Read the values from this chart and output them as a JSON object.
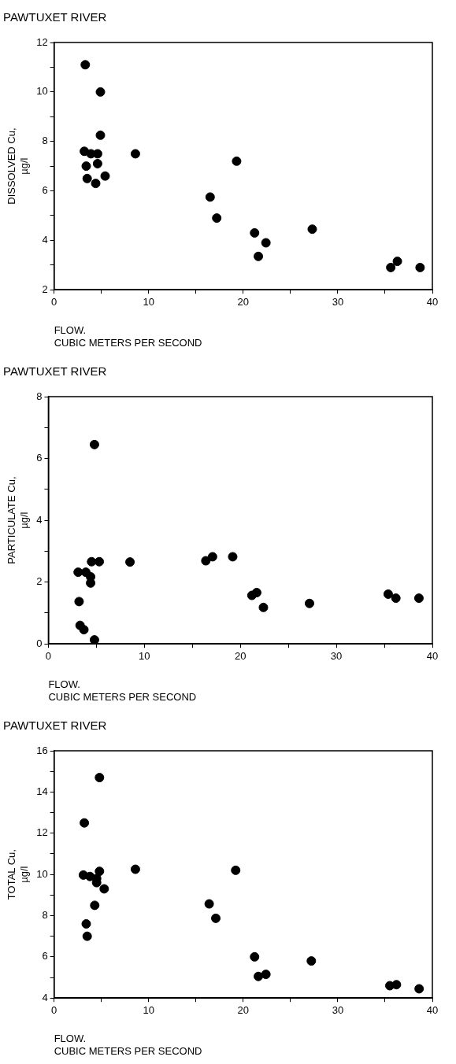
{
  "chart_data": [
    {
      "type": "scatter",
      "title": "PAWTUXET RIVER",
      "xlabel": "FLOW.\nCUBIC METERS PER SECOND",
      "ylabel": "DISSOLVED Cu,\nµg/l",
      "marker": "circle",
      "grid": false,
      "legend": false,
      "xlim": [
        0,
        40
      ],
      "xticks": [
        0,
        {
          "value": 5,
          "label": null
        },
        10,
        {
          "value": 15,
          "label": null
        },
        20,
        {
          "value": 25,
          "label": null
        },
        30,
        {
          "value": 35,
          "label": null
        },
        40
      ],
      "ylim": [
        2,
        12
      ],
      "yticks": [
        2,
        {
          "value": 3,
          "label": null
        },
        4,
        {
          "value": 5,
          "label": null
        },
        6,
        {
          "value": 7,
          "label": null
        },
        8,
        {
          "value": 9,
          "label": null
        },
        10,
        {
          "value": 11,
          "label": null
        },
        12
      ],
      "series": [
        {
          "color": "#000000",
          "x": [
            3.3,
            4.9,
            4.9,
            3.2,
            3.9,
            4.6,
            8.6,
            3.4,
            4.6,
            3.5,
            4.4,
            5.4,
            19.3,
            16.5,
            17.2,
            21.2,
            21.6,
            22.4,
            27.3,
            35.6,
            36.3,
            38.7
          ],
          "values": [
            11.1,
            10.0,
            8.25,
            7.6,
            7.5,
            7.5,
            7.5,
            7.0,
            7.1,
            6.5,
            6.3,
            6.6,
            7.2,
            5.75,
            4.9,
            4.3,
            3.35,
            3.9,
            4.45,
            2.9,
            3.15,
            2.9
          ]
        }
      ]
    },
    {
      "type": "scatter",
      "title": "PAWTUXET RIVER",
      "xlabel": "FLOW.\nCUBIC METERS PER SECOND",
      "ylabel": "PARTICULATE Cu,\nµg/l",
      "marker": "circle",
      "grid": false,
      "legend": false,
      "xlim": [
        0,
        40
      ],
      "xticks": [
        0,
        {
          "value": 5,
          "label": null
        },
        10,
        {
          "value": 15,
          "label": null
        },
        20,
        {
          "value": 25,
          "label": null
        },
        30,
        {
          "value": 35,
          "label": null
        },
        40
      ],
      "ylim": [
        0,
        8
      ],
      "yticks": [
        0,
        {
          "value": 1,
          "label": null
        },
        2,
        {
          "value": 3,
          "label": null
        },
        4,
        {
          "value": 5,
          "label": null
        },
        6,
        {
          "value": 7,
          "label": null
        },
        8
      ],
      "series": [
        {
          "color": "#000000",
          "x": [
            4.8,
            4.5,
            5.3,
            8.5,
            3.1,
            3.9,
            4.4,
            4.4,
            3.2,
            3.3,
            3.7,
            4.8,
            16.4,
            17.1,
            19.2,
            21.2,
            21.7,
            22.4,
            27.2,
            35.4,
            36.2,
            38.6
          ],
          "values": [
            6.45,
            2.66,
            2.66,
            2.65,
            2.32,
            2.32,
            2.17,
            1.97,
            1.37,
            0.6,
            0.46,
            0.13,
            2.69,
            2.82,
            2.82,
            1.57,
            1.66,
            1.18,
            1.31,
            1.61,
            1.48,
            1.48
          ]
        }
      ]
    },
    {
      "type": "scatter",
      "title": "PAWTUXET RIVER",
      "xlabel": "FLOW.\nCUBIC METERS PER SECOND",
      "ylabel": "TOTAL Cu,\nµg/l",
      "marker": "circle",
      "grid": false,
      "legend": false,
      "xlim": [
        0,
        40
      ],
      "xticks": [
        0,
        {
          "value": 5,
          "label": null
        },
        10,
        {
          "value": 15,
          "label": null
        },
        20,
        {
          "value": 25,
          "label": null
        },
        30,
        {
          "value": 35,
          "label": null
        },
        40
      ],
      "ylim": [
        4,
        16
      ],
      "yticks": [
        4,
        {
          "value": 5,
          "label": null
        },
        6,
        {
          "value": 7,
          "label": null
        },
        8,
        {
          "value": 9,
          "label": null
        },
        10,
        {
          "value": 11,
          "label": null
        },
        12,
        {
          "value": 13,
          "label": null
        },
        14,
        {
          "value": 15,
          "label": null
        },
        16
      ],
      "series": [
        {
          "color": "#000000",
          "x": [
            4.8,
            3.2,
            3.1,
            3.8,
            4.8,
            4.5,
            4.5,
            5.3,
            4.3,
            3.4,
            3.5,
            8.6,
            19.2,
            16.4,
            17.1,
            21.2,
            21.6,
            22.4,
            27.2,
            35.5,
            36.2,
            38.6
          ],
          "values": [
            14.7,
            12.5,
            9.97,
            9.9,
            10.15,
            9.8,
            9.6,
            9.3,
            8.5,
            7.6,
            7.0,
            10.25,
            10.2,
            8.57,
            7.87,
            6.0,
            5.05,
            5.15,
            5.8,
            4.6,
            4.65,
            4.45
          ]
        }
      ]
    }
  ]
}
